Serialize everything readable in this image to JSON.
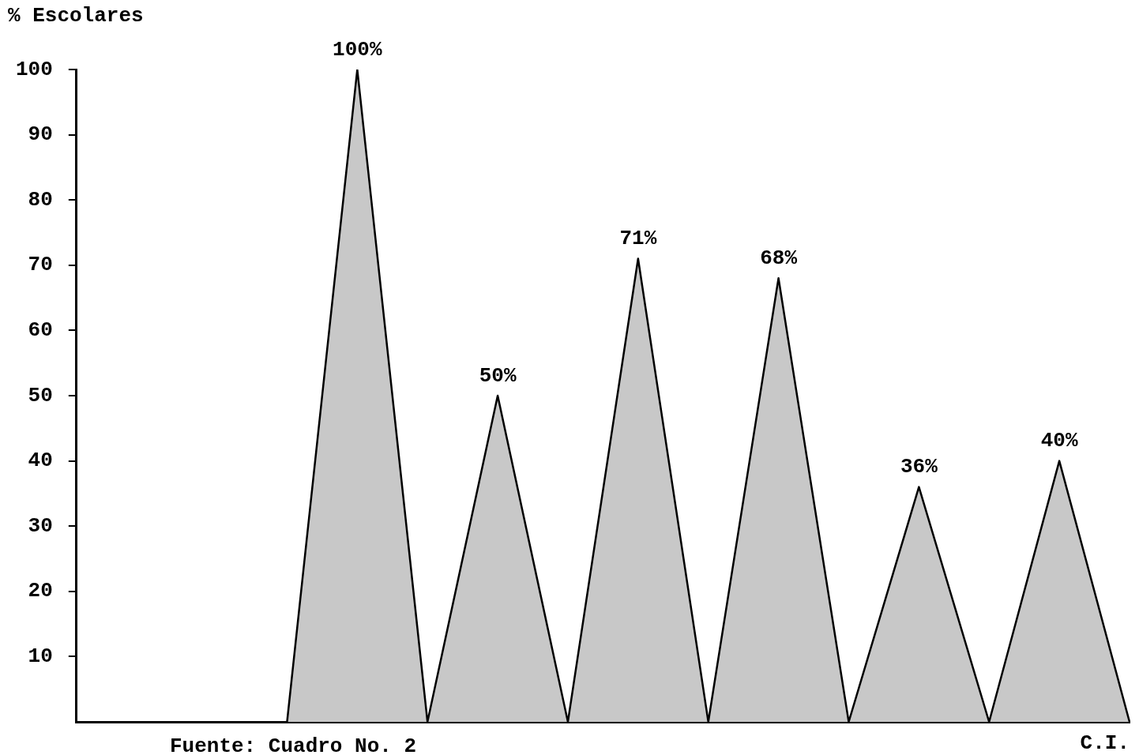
{
  "chart_data": {
    "type": "area",
    "ylabel": "% Escolares",
    "xlabel": "C.I.",
    "categories": [
      null,
      null,
      null,
      null,
      null,
      null,
      null,
      null,
      null,
      null,
      null,
      null,
      null,
      null,
      null,
      null
    ],
    "values": [
      null,
      null,
      null,
      0,
      100,
      0,
      50,
      0,
      71,
      0,
      68,
      0,
      36,
      0,
      40,
      0
    ],
    "value_labels": [
      null,
      null,
      null,
      null,
      "100%",
      null,
      "50%",
      null,
      "71%",
      null,
      "68%",
      null,
      "36%",
      null,
      "40%",
      null
    ],
    "color": "#c8c8c8",
    "ylim": [
      0,
      100
    ],
    "yticks": [
      10,
      20,
      30,
      40,
      50,
      60,
      70,
      80,
      90,
      100
    ],
    "grid": false,
    "annotations": [
      "Fuente: Cuadro No. 2"
    ]
  }
}
